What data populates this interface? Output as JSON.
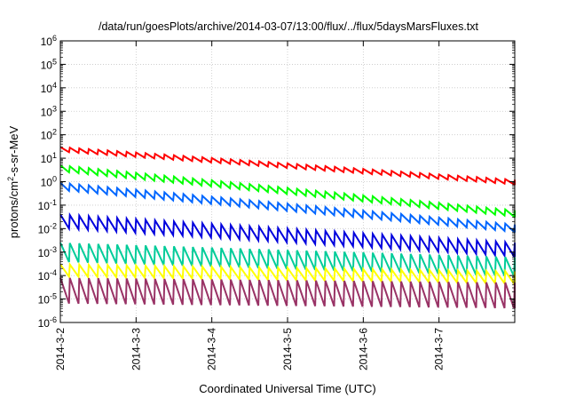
{
  "chart_data": {
    "type": "line",
    "title": "/data/run/goesPlots/archive/2014-03-07/13:00/flux/../flux/5daysMarsFluxes.txt",
    "xlabel": "Coordinated Universal Time (UTC)",
    "ylabel": {
      "base": "protons/cm",
      "sup": "2",
      "rest": "-s-sr-MeV"
    },
    "yscale": "log",
    "ylim": [
      1e-06,
      1000000.0
    ],
    "xlim": [
      0,
      6.0
    ],
    "x_ticks": [
      {
        "v": 0,
        "label": "2014-3-2"
      },
      {
        "v": 1,
        "label": "2014-3-3"
      },
      {
        "v": 2,
        "label": "2014-3-4"
      },
      {
        "v": 3,
        "label": "2014-3-5"
      },
      {
        "v": 4,
        "label": "2014-3-6"
      },
      {
        "v": 5,
        "label": "2014-3-7"
      }
    ],
    "y_ticks": [
      {
        "exp": -6,
        "base": "10",
        "sup": "-6"
      },
      {
        "exp": -5,
        "base": "10",
        "sup": "-5"
      },
      {
        "exp": -4,
        "base": "10",
        "sup": "-4"
      },
      {
        "exp": -3,
        "base": "10",
        "sup": "-3"
      },
      {
        "exp": -2,
        "base": "10",
        "sup": "-2"
      },
      {
        "exp": -1,
        "base": "10",
        "sup": "-1"
      },
      {
        "exp": 0,
        "base": "10",
        "sup": "0"
      },
      {
        "exp": 1,
        "base": "10",
        "sup": "1"
      },
      {
        "exp": 2,
        "base": "10",
        "sup": "2"
      },
      {
        "exp": 3,
        "base": "10",
        "sup": "3"
      },
      {
        "exp": 4,
        "base": "10",
        "sup": "4"
      },
      {
        "exp": 5,
        "base": "10",
        "sup": "5"
      },
      {
        "exp": 6,
        "base": "10",
        "sup": "6"
      }
    ],
    "grid": true,
    "sawtooth_period_days": 0.125,
    "series": [
      {
        "color": "#ff0000",
        "start": 30,
        "end": 1.2,
        "drop_factor": 0.6
      },
      {
        "color": "#00ff00",
        "start": 5,
        "end": 0.06,
        "drop_factor": 0.5
      },
      {
        "color": "#0066ff",
        "start": 0.9,
        "end": 0.015,
        "drop_factor": 0.45
      },
      {
        "color": "#0000dd",
        "start": 0.04,
        "end": 0.0025,
        "drop_factor": 0.25
      },
      {
        "color": "#00cc99",
        "start": 0.0025,
        "end": 0.0006,
        "drop_factor": 0.15
      },
      {
        "color": "#ffff00",
        "start": 0.0003,
        "end": 0.00015,
        "drop_factor": 0.3
      },
      {
        "color": "#993366",
        "start": 8e-05,
        "end": 5e-05,
        "drop_factor": 0.08
      }
    ]
  }
}
